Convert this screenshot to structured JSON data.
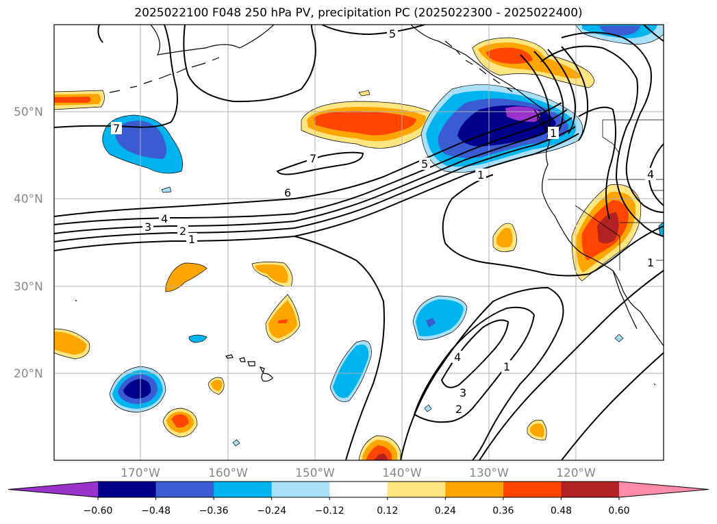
{
  "title": "2025022100 F048 250 hPa PV, precipitation PC (2025022300 - 2025022400)",
  "map": {
    "lat_labels": [
      "50°N",
      "40°N",
      "30°N",
      "20°N"
    ],
    "lon_labels": [
      "170°W",
      "160°W",
      "150°W",
      "140°W",
      "130°W",
      "120°W"
    ],
    "contour_labels": [
      "5",
      "7",
      "7",
      "6",
      "4",
      "3",
      "2",
      "1",
      "5",
      "1",
      "4",
      "3",
      "2",
      "1",
      "4",
      "1",
      "1"
    ]
  },
  "colorbar": {
    "ticks": [
      "−0.60",
      "−0.48",
      "−0.36",
      "−0.24",
      "−0.12",
      "0.12",
      "0.24",
      "0.36",
      "0.48",
      "0.60"
    ],
    "colors": [
      "#9933cc",
      "#00008b",
      "#3a5bd1",
      "#00b4f0",
      "#aae0fa",
      "#ffffff",
      "#ffe680",
      "#ffa500",
      "#ff4500",
      "#b22222",
      "#ff8aaa"
    ]
  }
}
